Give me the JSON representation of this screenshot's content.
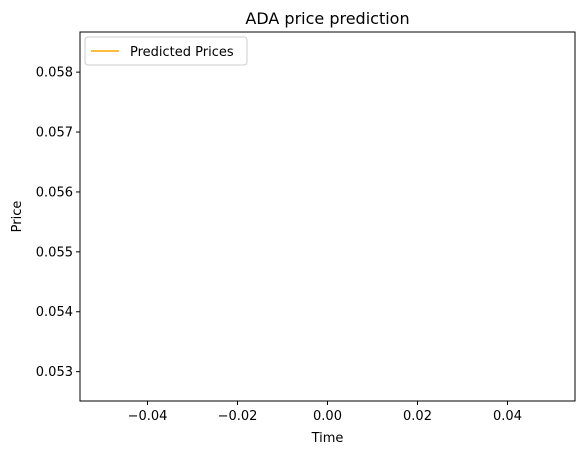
{
  "chart_data": {
    "type": "line",
    "title": "ADA price prediction",
    "xlabel": "Time",
    "ylabel": "Price",
    "x_ticks": [
      -0.04,
      -0.02,
      0.0,
      0.02,
      0.04
    ],
    "x_tick_labels": [
      "−0.04",
      "−0.02",
      "0.00",
      "0.02",
      "0.04"
    ],
    "y_ticks": [
      0.053,
      0.054,
      0.055,
      0.056,
      0.057,
      0.058
    ],
    "y_tick_labels": [
      "0.053",
      "0.054",
      "0.055",
      "0.056",
      "0.057",
      "0.058"
    ],
    "xlim": [
      -0.055,
      0.055
    ],
    "ylim": [
      0.05251,
      0.05867
    ],
    "grid": false,
    "legend_position": "upper left",
    "series": [
      {
        "name": "Predicted Prices",
        "color": "#ffa500",
        "points": []
      }
    ]
  }
}
